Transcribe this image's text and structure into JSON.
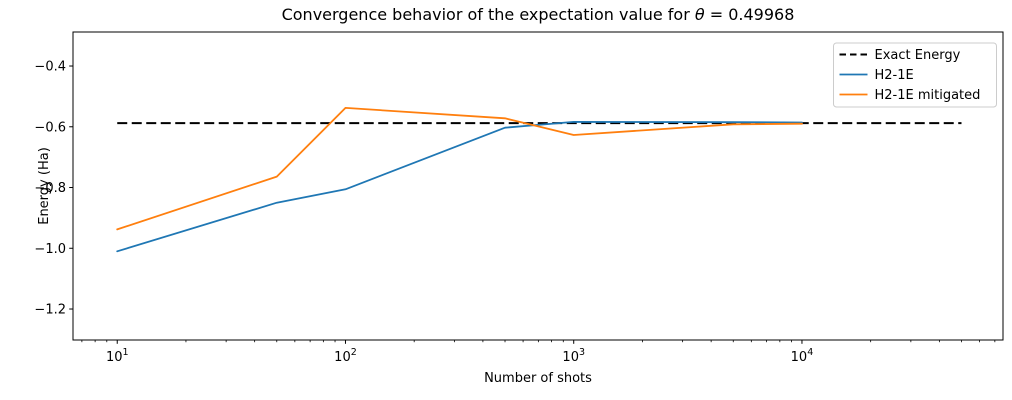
{
  "figure": {
    "title": {
      "prefix": "Convergence behavior of the expectation value for ",
      "theta_symbol": "θ",
      "suffix": " = 0.49968"
    },
    "xlabel": "Number of shots",
    "ylabel": "Energy (Ha)"
  },
  "chart_data": {
    "type": "line",
    "title": "Convergence behavior of the expectation value for θ = 0.49968",
    "xlabel": "Number of shots",
    "ylabel": "Energy (Ha)",
    "x_scale": "log",
    "grid": false,
    "xlim": [
      6.4,
      76000
    ],
    "ylim": [
      -1.302,
      -0.288
    ],
    "x_major_ticks": [
      10,
      100,
      1000,
      10000
    ],
    "x_tick_labels": [
      {
        "base": "10",
        "exp": "1"
      },
      {
        "base": "10",
        "exp": "2"
      },
      {
        "base": "10",
        "exp": "3"
      },
      {
        "base": "10",
        "exp": "4"
      }
    ],
    "y_ticks": [
      -0.4,
      -0.6,
      -0.8,
      -1.0,
      -1.2
    ],
    "y_tick_labels": [
      "−0.4",
      "−0.6",
      "−0.8",
      "−1.0",
      "−1.2"
    ],
    "reference_line": {
      "label": "Exact Energy",
      "value": -0.588,
      "x_start": 10,
      "x_end": 50000,
      "color": "#000000",
      "linestyle": "dashed"
    },
    "x": [
      10,
      50,
      100,
      500,
      1000,
      5000,
      10000
    ],
    "series": [
      {
        "name": "H2-1E",
        "color": "#1f77b4",
        "values": [
          -1.01,
          -0.85,
          -0.806,
          -0.603,
          -0.584,
          -0.585,
          -0.586
        ]
      },
      {
        "name": "H2-1E mitigated",
        "color": "#ff7f0e",
        "values": [
          -0.938,
          -0.764,
          -0.538,
          -0.572,
          -0.627,
          -0.592,
          -0.59
        ]
      }
    ],
    "legend_position": "upper right",
    "legend_entries": [
      {
        "label": "Exact Energy",
        "color": "#000000",
        "dashed": true
      },
      {
        "label": "H2-1E",
        "color": "#1f77b4",
        "dashed": false
      },
      {
        "label": "H2-1E mitigated",
        "color": "#ff7f0e",
        "dashed": false
      }
    ]
  }
}
